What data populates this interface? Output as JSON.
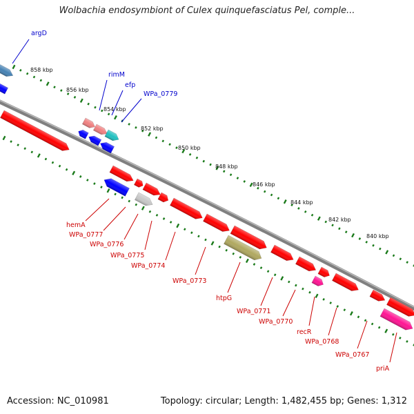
{
  "title": "Wolbachia endosymbiont of Culex quinquefasciatus Pel, comple...",
  "footer": {
    "accession": "Accession: NC_010981",
    "summary": "Topology: circular; Length: 1,482,455 bp; Genes: 1,312"
  },
  "colors": {
    "forward_gene": "#ff0000",
    "reverse_gene": "#0000ff",
    "label_forward": "#cc0000",
    "label_reverse": "#0000cc",
    "tick": "#1a7a1a",
    "backbone": "#808080"
  },
  "scale_labels": [
    "858 kbp",
    "856 kbp",
    "854 kbp",
    "852 kbp",
    "850 kbp",
    "848 kbp",
    "846 kbp",
    "844 kbp",
    "842 kbp",
    "840 kbp"
  ],
  "upper_labels": [
    "argD",
    "rimM",
    "efp",
    "WPa_0779"
  ],
  "lower_labels": [
    "hemA",
    "WPa_0777",
    "WPa_0776",
    "WPa_0775",
    "WPa_0774",
    "WPa_0773",
    "htpG",
    "WPa_0771",
    "WPa_0770",
    "recR",
    "WPa_0768",
    "WPa_0767",
    "priA"
  ]
}
